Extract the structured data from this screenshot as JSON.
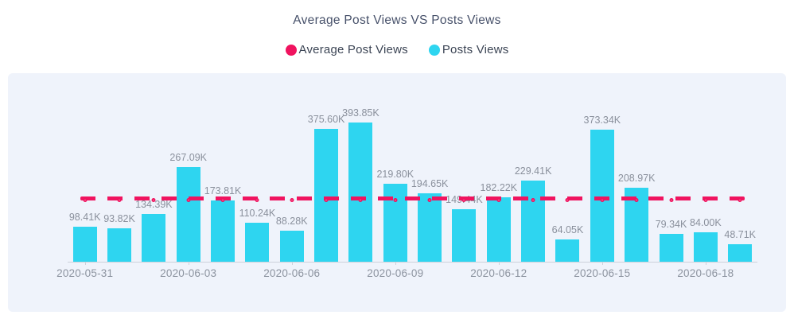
{
  "header": {
    "title": "Average Post Views VS Posts Views"
  },
  "legend": {
    "items": [
      {
        "label": "Average Post Views",
        "color": "#f0135f"
      },
      {
        "label": "Posts Views",
        "color": "#2ed5f0"
      }
    ]
  },
  "panel": {
    "background": "#eff3fb"
  },
  "chart_data": {
    "type": "bar",
    "title": "Average Post Views VS Posts Views",
    "unit": "K (thousands of views)",
    "grid": false,
    "legend_position": "top",
    "ylim_k": [
      0,
      400
    ],
    "series": [
      {
        "name": "Posts Views",
        "type": "bar",
        "color": "#2ed5f0",
        "values_k": [
          98.41,
          93.82,
          134.39,
          267.09,
          173.81,
          110.24,
          88.28,
          375.6,
          393.85,
          219.8,
          194.65,
          149.44,
          182.22,
          229.41,
          64.05,
          373.34,
          208.97,
          79.34,
          84.0,
          48.71
        ],
        "value_labels": [
          "98.41K",
          "93.82K",
          "134.39K",
          "267.09K",
          "173.81K",
          "110.24K",
          "88.28K",
          "375.60K",
          "393.85K",
          "219.80K",
          "194.65K",
          "149.44K",
          "182.22K",
          "229.41K",
          "64.05K",
          "373.34K",
          "208.97K",
          "79.34K",
          "84.00K",
          "48.71K"
        ]
      },
      {
        "name": "Average Post Views",
        "type": "line",
        "style": "dashed",
        "color": "#f0135f",
        "marker": "circle-white-fill",
        "approx_value_k": 178.47
      }
    ],
    "x_tick_labels": [
      {
        "bar_index": 0,
        "label": "2020-05-31"
      },
      {
        "bar_index": 3,
        "label": "2020-06-03"
      },
      {
        "bar_index": 6,
        "label": "2020-06-06"
      },
      {
        "bar_index": 9,
        "label": "2020-06-09"
      },
      {
        "bar_index": 12,
        "label": "2020-06-12"
      },
      {
        "bar_index": 15,
        "label": "2020-06-15"
      },
      {
        "bar_index": 18,
        "label": "2020-06-18"
      }
    ]
  }
}
